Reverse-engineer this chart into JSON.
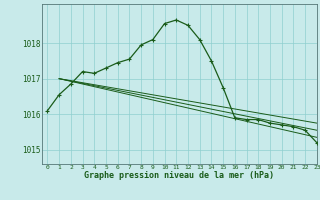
{
  "title": "Graphe pression niveau de la mer (hPa)",
  "bg_color": "#c8eaea",
  "grid_color": "#8fcfcf",
  "line_color": "#1a5c1a",
  "xlim": [
    -0.5,
    23
  ],
  "ylim": [
    1014.6,
    1019.1
  ],
  "yticks": [
    1015,
    1016,
    1017,
    1018
  ],
  "xtick_labels": [
    "0",
    "1",
    "2",
    "3",
    "4",
    "5",
    "6",
    "7",
    "8",
    "9",
    "10",
    "11",
    "12",
    "13",
    "14",
    "15",
    "16",
    "17",
    "18",
    "19",
    "20",
    "21",
    "22",
    "23"
  ],
  "series1": {
    "x": [
      0,
      1,
      2,
      3,
      4,
      5,
      6,
      7,
      8,
      9,
      10,
      11,
      12,
      13,
      14,
      15,
      16,
      17,
      18,
      19,
      20,
      21,
      22,
      23
    ],
    "y": [
      1016.1,
      1016.55,
      1016.85,
      1017.2,
      1017.15,
      1017.3,
      1017.45,
      1017.55,
      1017.95,
      1018.1,
      1018.55,
      1018.65,
      1018.5,
      1018.1,
      1017.5,
      1016.75,
      1015.9,
      1015.85,
      1015.85,
      1015.75,
      1015.7,
      1015.65,
      1015.55,
      1015.2
    ]
  },
  "series2": {
    "x": [
      1,
      23
    ],
    "y": [
      1017.0,
      1015.55
    ]
  },
  "series3": {
    "x": [
      1,
      23
    ],
    "y": [
      1017.0,
      1015.75
    ]
  },
  "series4": {
    "x": [
      1,
      23
    ],
    "y": [
      1017.0,
      1015.35
    ]
  }
}
